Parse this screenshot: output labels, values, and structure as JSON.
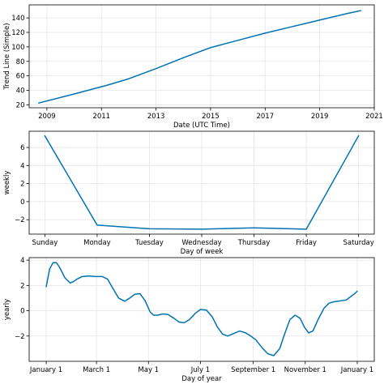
{
  "chart_data": [
    {
      "type": "line",
      "xlabel": "Date (UTC Time)",
      "ylabel": "Trend Line (Simple)",
      "xlim": [
        2008.35,
        2021.0
      ],
      "ylim": [
        16,
        158
      ],
      "xticks": [
        2009,
        2011,
        2013,
        2015,
        2017,
        2019,
        2021
      ],
      "xtick_labels": [
        "2009",
        "2011",
        "2013",
        "2015",
        "2017",
        "2019",
        "2021"
      ],
      "yticks": [
        20,
        40,
        60,
        80,
        100,
        120,
        140
      ],
      "ytick_labels": [
        "20",
        "40",
        "60",
        "80",
        "100",
        "120",
        "140"
      ],
      "grid": true,
      "color": "#0072B2",
      "series": [
        {
          "x": [
            2008.7,
            2010.0,
            2011.2,
            2012.0,
            2013.0,
            2014.0,
            2015.0,
            2016.0,
            2017.0,
            2018.0,
            2019.0,
            2020.0,
            2020.5
          ],
          "y": [
            22.5,
            35,
            47,
            56,
            70,
            85,
            99,
            109,
            119,
            128,
            137,
            146,
            150
          ]
        }
      ]
    },
    {
      "type": "line",
      "xlabel": "Day of week",
      "ylabel": "weekly",
      "xlim": [
        -0.3,
        6.3
      ],
      "ylim": [
        -3.6,
        7.8
      ],
      "categories": [
        "Sunday",
        "Monday",
        "Tuesday",
        "Wednesday",
        "Thursday",
        "Friday",
        "Saturday"
      ],
      "yticks": [
        -2,
        0,
        2,
        4,
        6
      ],
      "ytick_labels": [
        "−2",
        "0",
        "2",
        "4",
        "6"
      ],
      "grid": true,
      "color": "#0072B2",
      "series": [
        {
          "x": [
            0,
            1,
            2,
            3,
            4,
            5,
            6
          ],
          "y": [
            7.3,
            -2.6,
            -3.0,
            -3.05,
            -2.9,
            -3.05,
            7.3
          ]
        }
      ]
    },
    {
      "type": "line",
      "xlabel": "Day of year",
      "ylabel": "yearly",
      "xlim": [
        -20,
        385
      ],
      "ylim": [
        -4.0,
        4.2
      ],
      "xticks": [
        0,
        59,
        120,
        181,
        243,
        304,
        365
      ],
      "xtick_labels": [
        "January 1",
        "March 1",
        "May 1",
        "July 1",
        "September 1",
        "November 1",
        "January 1"
      ],
      "yticks": [
        -2,
        0,
        2,
        4
      ],
      "ytick_labels": [
        "−2",
        "0",
        "2",
        "4"
      ],
      "grid": true,
      "color": "#0072B2",
      "series": [
        {
          "x": [
            0,
            4,
            8,
            12,
            16,
            22,
            28,
            32,
            36,
            42,
            50,
            58,
            66,
            72,
            78,
            85,
            92,
            98,
            104,
            110,
            116,
            122,
            126,
            131,
            137,
            143,
            150,
            156,
            162,
            168,
            175,
            181,
            188,
            195,
            201,
            207,
            213,
            220,
            227,
            234,
            240,
            246,
            253,
            260,
            267,
            274,
            280,
            286,
            292,
            298,
            303,
            308,
            313,
            319,
            326,
            332,
            337,
            342,
            347,
            352,
            357,
            362,
            365
          ],
          "y": [
            1.9,
            3.3,
            3.8,
            3.8,
            3.4,
            2.6,
            2.2,
            2.3,
            2.5,
            2.7,
            2.75,
            2.7,
            2.7,
            2.5,
            1.8,
            1.0,
            0.75,
            1.0,
            1.3,
            1.35,
            0.8,
            -0.1,
            -0.35,
            -0.35,
            -0.25,
            -0.3,
            -0.6,
            -0.9,
            -0.95,
            -0.7,
            -0.2,
            0.1,
            0.05,
            -0.5,
            -1.3,
            -1.85,
            -2.0,
            -1.8,
            -1.6,
            -1.75,
            -2.0,
            -2.3,
            -2.9,
            -3.4,
            -3.55,
            -3.0,
            -1.8,
            -0.7,
            -0.35,
            -0.6,
            -1.3,
            -1.75,
            -1.6,
            -0.7,
            0.2,
            0.6,
            0.7,
            0.75,
            0.8,
            0.85,
            1.1,
            1.35,
            1.55
          ]
        }
      ]
    }
  ]
}
